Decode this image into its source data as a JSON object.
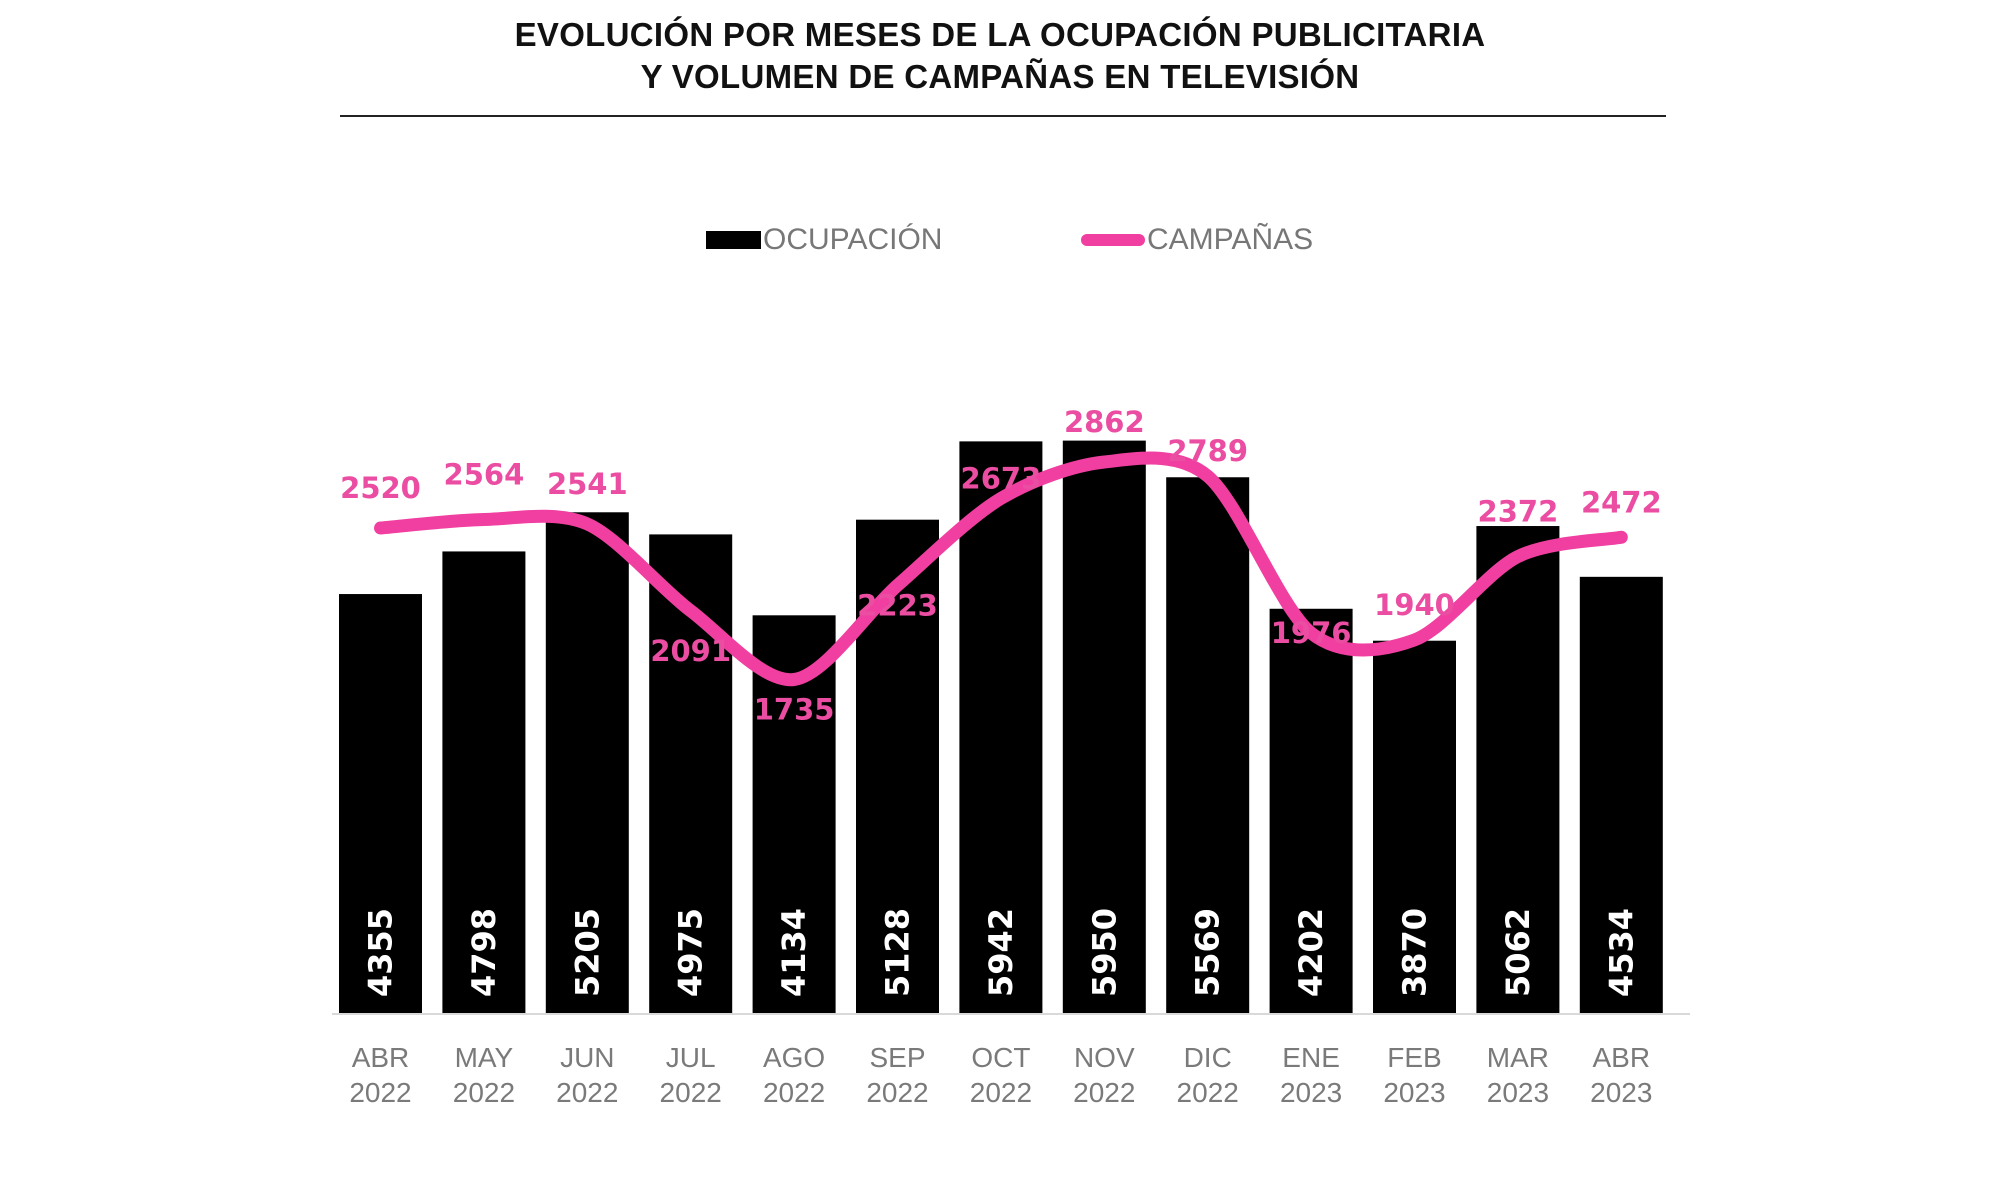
{
  "chart_data": {
    "type": "bar",
    "title": "EVOLUCIÓN POR MESES DE LA OCUPACIÓN PUBLICITARIA Y VOLUMEN DE CAMPAÑAS EN TELEVISIÓN",
    "title_lines": [
      "EVOLUCIÓN POR MESES DE LA OCUPACIÓN PUBLICITARIA",
      "Y VOLUMEN DE CAMPAÑAS EN TELEVISIÓN"
    ],
    "xlabel": "",
    "ylabel": "",
    "grid": false,
    "legend_position": "top-center",
    "categories": [
      [
        "ABR",
        "2022"
      ],
      [
        "MAY",
        "2022"
      ],
      [
        "JUN",
        "2022"
      ],
      [
        "JUL",
        "2022"
      ],
      [
        "AGO",
        "2022"
      ],
      [
        "SEP",
        "2022"
      ],
      [
        "OCT",
        "2022"
      ],
      [
        "NOV",
        "2022"
      ],
      [
        "DIC",
        "2022"
      ],
      [
        "ENE",
        "2023"
      ],
      [
        "FEB",
        "2023"
      ],
      [
        "MAR",
        "2023"
      ],
      [
        "ABR",
        "2023"
      ]
    ],
    "series": [
      {
        "name": "OCUPACIÓN",
        "type": "bar",
        "color": "#000000",
        "label_color": "#ffffff",
        "values": [
          4355,
          4798,
          5205,
          4975,
          4134,
          5128,
          5942,
          5950,
          5569,
          4202,
          3870,
          5062,
          4534
        ],
        "ylim": [
          0,
          6000
        ]
      },
      {
        "name": "CAMPAÑAS",
        "type": "line",
        "smooth": true,
        "color": "#f03fa0",
        "label_color": "#ea4da1",
        "values": [
          2520,
          2564,
          2541,
          2091,
          1735,
          2223,
          2673,
          2862,
          2789,
          1976,
          1940,
          2372,
          2472
        ]
      }
    ]
  }
}
